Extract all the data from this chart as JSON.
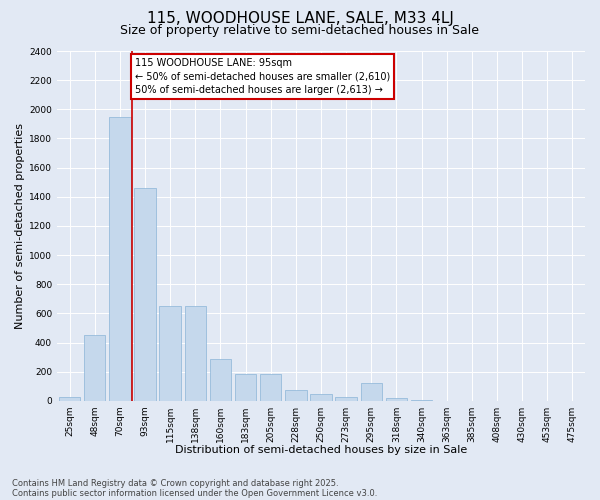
{
  "title": "115, WOODHOUSE LANE, SALE, M33 4LJ",
  "subtitle": "Size of property relative to semi-detached houses in Sale",
  "xlabel": "Distribution of semi-detached houses by size in Sale",
  "ylabel": "Number of semi-detached properties",
  "categories": [
    "25sqm",
    "48sqm",
    "70sqm",
    "93sqm",
    "115sqm",
    "138sqm",
    "160sqm",
    "183sqm",
    "205sqm",
    "228sqm",
    "250sqm",
    "273sqm",
    "295sqm",
    "318sqm",
    "340sqm",
    "363sqm",
    "385sqm",
    "408sqm",
    "430sqm",
    "453sqm",
    "475sqm"
  ],
  "values": [
    25,
    450,
    1950,
    1460,
    650,
    650,
    290,
    185,
    185,
    75,
    45,
    25,
    120,
    20,
    5,
    2,
    1,
    1,
    0,
    0,
    0
  ],
  "bar_color": "#c5d8ec",
  "bar_edge_color": "#8ab4d8",
  "vline_color": "#cc0000",
  "vline_x": 2.5,
  "annotation_text": "115 WOODHOUSE LANE: 95sqm\n← 50% of semi-detached houses are smaller (2,610)\n50% of semi-detached houses are larger (2,613) →",
  "annotation_box_color": "#ffffff",
  "annotation_box_edge": "#cc0000",
  "ylim": [
    0,
    2400
  ],
  "yticks": [
    0,
    200,
    400,
    600,
    800,
    1000,
    1200,
    1400,
    1600,
    1800,
    2000,
    2200,
    2400
  ],
  "footer_line1": "Contains HM Land Registry data © Crown copyright and database right 2025.",
  "footer_line2": "Contains public sector information licensed under the Open Government Licence v3.0.",
  "background_color": "#e2e9f4",
  "plot_bg_color": "#e2e9f4",
  "title_fontsize": 11,
  "subtitle_fontsize": 9,
  "axis_label_fontsize": 8,
  "tick_fontsize": 6.5,
  "annotation_fontsize": 7,
  "footer_fontsize": 6
}
